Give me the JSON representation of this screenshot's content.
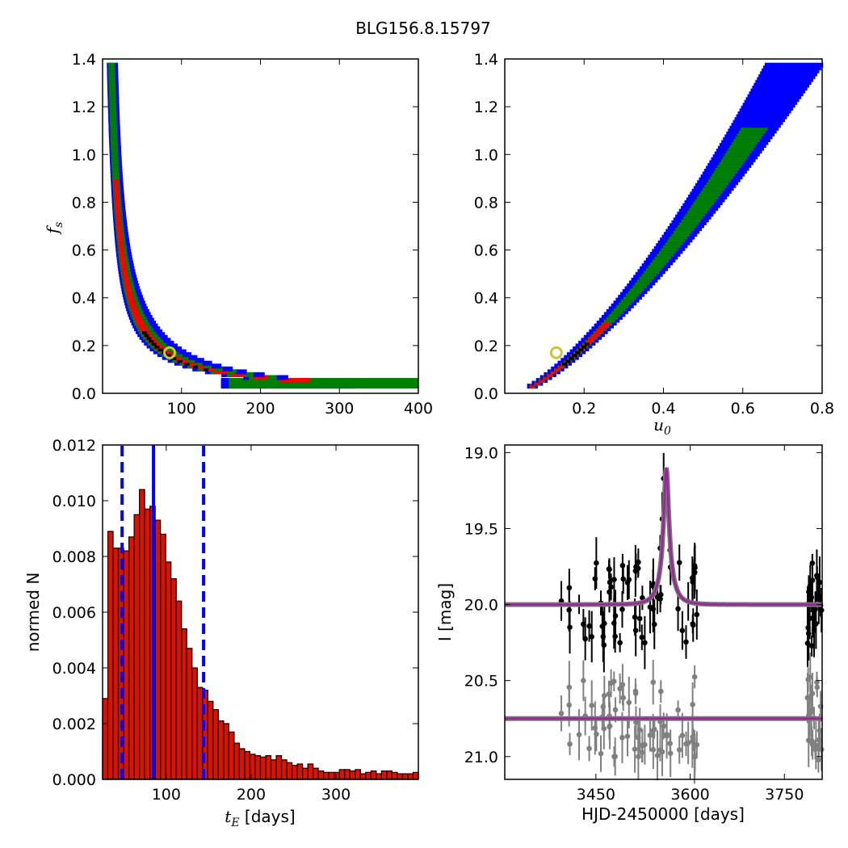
{
  "figure": {
    "title": "BLG156.8.15797"
  },
  "colors": {
    "contour_outer": "#0000ff",
    "contour_mid": "#008000",
    "contour_inner": "#ff0000",
    "contour_core": "#000000",
    "best_fit_marker": "#c8c832",
    "hist_fill": "#dd1100",
    "median_line": "#0000ff",
    "model_line": "#a020a0",
    "data_main": "#000000",
    "data_residual": "#808080"
  },
  "chart_data": [
    {
      "id": "fs_vs_tE",
      "type": "heatmap",
      "description_note": "",
      "xlabel": "",
      "ylabel": "f_s",
      "xlim": [
        0,
        400
      ],
      "ylim": [
        0.0,
        1.4
      ],
      "xticks": [
        "100",
        "200",
        "300",
        "400"
      ],
      "yticks": [
        "0.0",
        "0.2",
        "0.4",
        "0.6",
        "0.8",
        "1.0",
        "1.2",
        "1.4"
      ],
      "curve_model": {
        "tE_from_fs": "tE ≈ 14 / (fs + 0.005)",
        "fs_range": [
          0.03,
          1.38
        ]
      },
      "best_fit": {
        "tE": 85,
        "fs": 0.17
      }
    },
    {
      "id": "fs_vs_u0",
      "type": "heatmap",
      "xlabel": "u_0",
      "ylabel": "",
      "xlim": [
        0.0,
        0.8
      ],
      "ylim": [
        0.0,
        1.4
      ],
      "xticks": [
        "0.2",
        "0.4",
        "0.6",
        "0.8"
      ],
      "yticks": [
        "0.0",
        "0.2",
        "0.4",
        "0.6",
        "0.8",
        "1.0",
        "1.2",
        "1.4"
      ],
      "best_fit": {
        "u0": 0.13,
        "fs": 0.17
      }
    },
    {
      "id": "tE_histogram",
      "type": "bar",
      "xlabel": "t_E [days]",
      "ylabel": "normed N",
      "xlim": [
        25,
        397
      ],
      "ylim": [
        0.0,
        0.012
      ],
      "xticks": [
        "100",
        "200",
        "300"
      ],
      "yticks": [
        "0.000",
        "0.002",
        "0.004",
        "0.006",
        "0.008",
        "0.010",
        "0.012"
      ],
      "bin_start": 25,
      "bin_width": 6.2,
      "values": [
        0.0029,
        0.0089,
        0.0083,
        0.0083,
        0.0082,
        0.0087,
        0.0095,
        0.0104,
        0.0097,
        0.0098,
        0.0093,
        0.0088,
        0.0078,
        0.0072,
        0.0064,
        0.0054,
        0.0047,
        0.004,
        0.0033,
        0.0032,
        0.0028,
        0.0025,
        0.0021,
        0.002,
        0.0017,
        0.0013,
        0.0011,
        0.001,
        0.0009,
        0.00085,
        0.0008,
        0.00085,
        0.0007,
        0.00085,
        0.0007,
        0.0006,
        0.0005,
        0.00055,
        0.0004,
        0.00055,
        0.0004,
        0.0003,
        0.00025,
        0.00025,
        0.00025,
        0.00035,
        0.00035,
        0.0003,
        0.00035,
        0.0002,
        0.00025,
        0.0003,
        0.0002,
        0.0003,
        0.0003,
        0.00025,
        0.0002,
        0.0002,
        0.0002,
        0.00025
      ],
      "median_line": 85,
      "dashed_lines": [
        48,
        144
      ]
    },
    {
      "id": "lightcurve",
      "type": "scatter",
      "xlabel": "HJD-2450000 [days]",
      "ylabel": "I [mag]",
      "xlim": [
        3305,
        3810
      ],
      "ylim": [
        21.15,
        18.95
      ],
      "xticks": [
        "3450",
        "3600",
        "3750"
      ],
      "yticks": [
        "19.0",
        "19.5",
        "20.0",
        "20.5",
        "21.0"
      ],
      "model": {
        "baseline": 20.0,
        "peak_mag": 19.1,
        "t0": 3562,
        "tE": 20
      },
      "residual_offset": 20.75
    }
  ]
}
